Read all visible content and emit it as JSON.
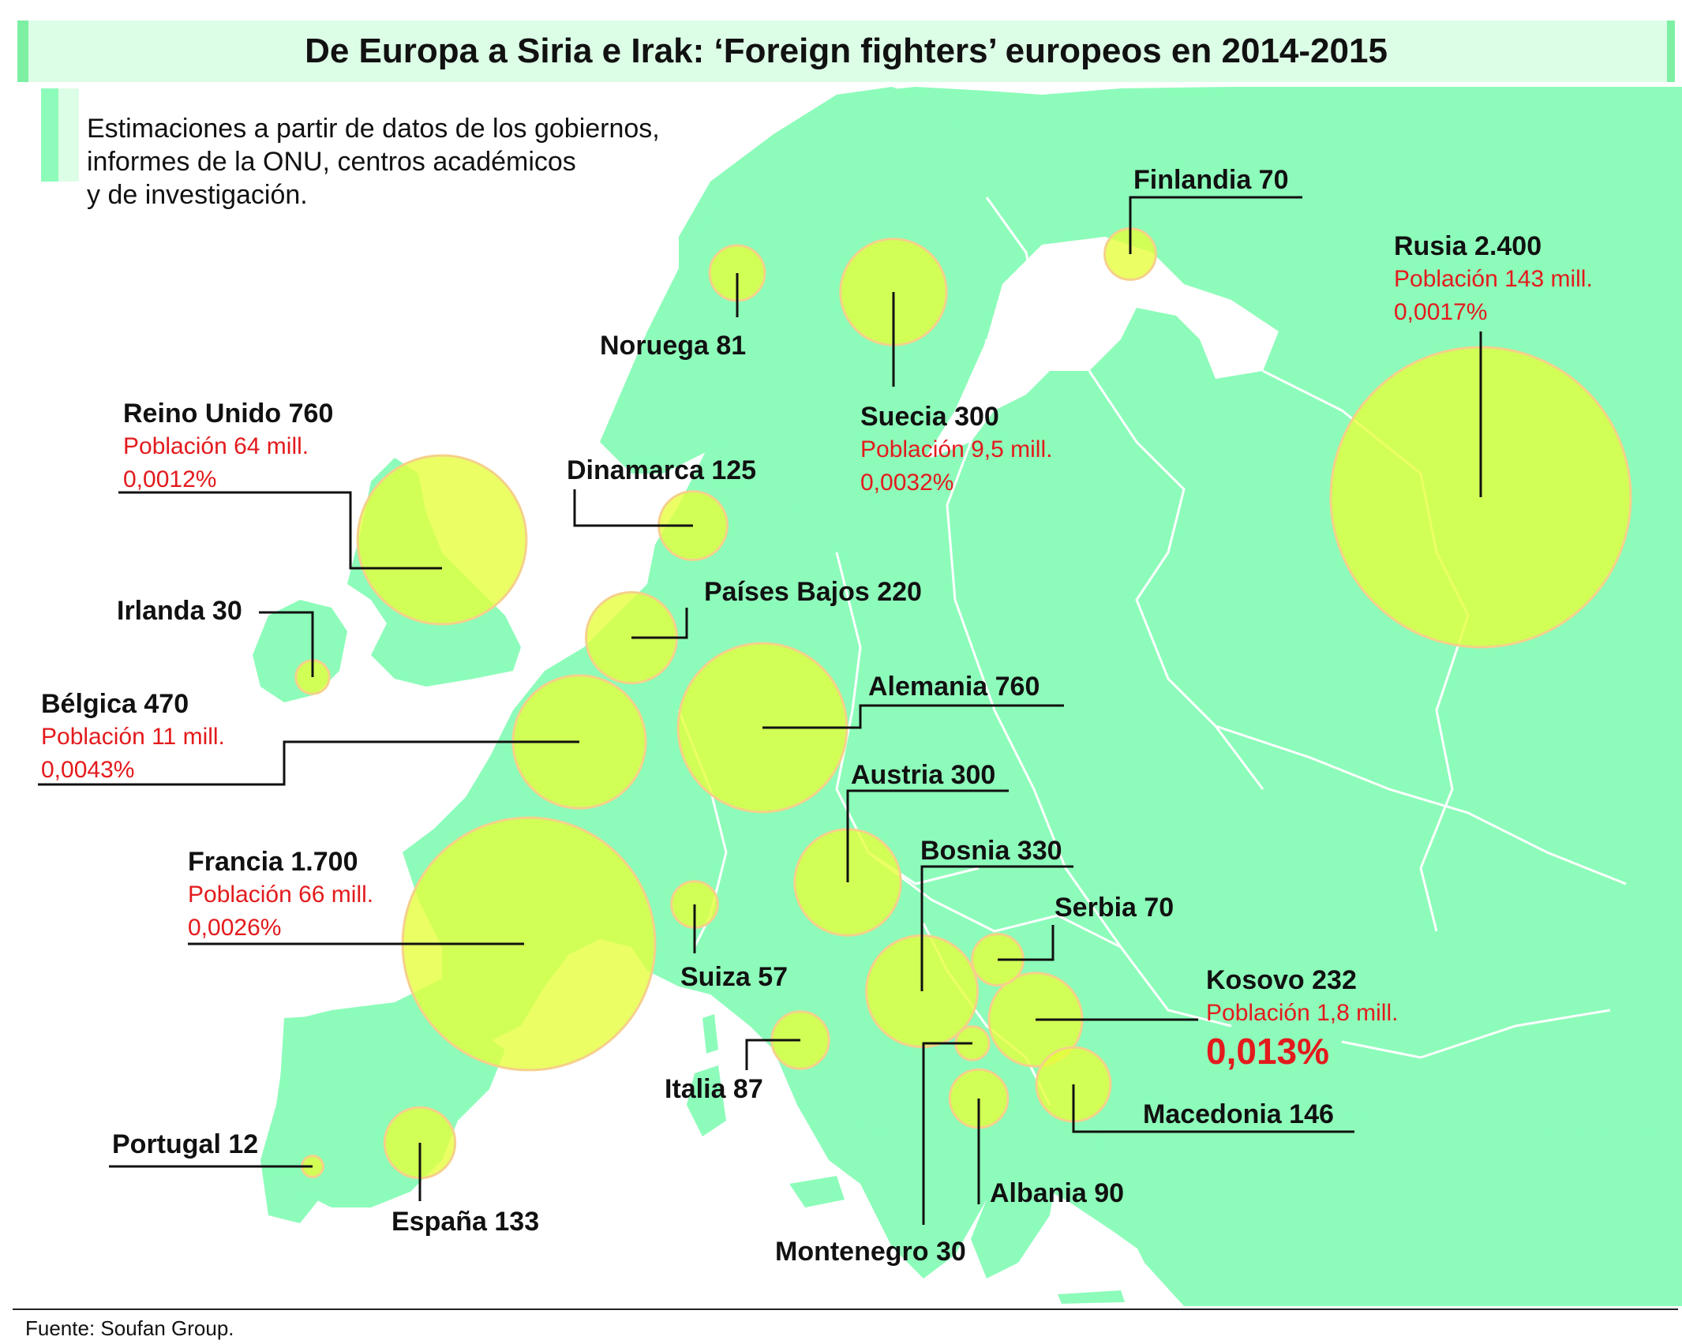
{
  "title": "De Europa a Siria e Irak: ‘Foreign fighters’ europeos en 2014-2015",
  "subtitle_lines": [
    "Estimaciones a partir de datos de los gobiernos,",
    "informes de la ONU, centros académicos",
    "y de investigación."
  ],
  "source": "Fuente: Soufan Group.",
  "colors": {
    "land": "#8dfcba",
    "sea": "#ffffff",
    "bubble_fill": "#e6ff3a",
    "bubble_stroke": "#f5d08a",
    "highlight": "#e31a1c"
  },
  "countries": [
    {
      "name": "Rusia",
      "fighters": "2.400",
      "label": "Rusia 2.400",
      "population": "Población 143 mill.",
      "percent": "0,0017%"
    },
    {
      "name": "Francia",
      "fighters": "1.700",
      "label": "Francia 1.700",
      "population": "Población 66 mill.",
      "percent": "0,0026%"
    },
    {
      "name": "Reino Unido",
      "fighters": "760",
      "label": "Reino Unido 760",
      "population": "Población 64 mill.",
      "percent": "0,0012%"
    },
    {
      "name": "Alemania",
      "fighters": "760",
      "label": "Alemania 760"
    },
    {
      "name": "Bélgica",
      "fighters": "470",
      "label": "Bélgica 470",
      "population": "Población 11 mill.",
      "percent": "0,0043%"
    },
    {
      "name": "Bosnia",
      "fighters": "330",
      "label": "Bosnia 330"
    },
    {
      "name": "Suecia",
      "fighters": "300",
      "label": "Suecia 300",
      "population": "Población 9,5 mill.",
      "percent": "0,0032%"
    },
    {
      "name": "Austria",
      "fighters": "300",
      "label": "Austria 300"
    },
    {
      "name": "Kosovo",
      "fighters": "232",
      "label": "Kosovo 232",
      "population": "Población 1,8 mill.",
      "percent": "0,013%"
    },
    {
      "name": "Países Bajos",
      "fighters": "220",
      "label": "Países Bajos 220"
    },
    {
      "name": "Macedonia",
      "fighters": "146",
      "label": "Macedonia 146"
    },
    {
      "name": "España",
      "fighters": "133",
      "label": "España 133"
    },
    {
      "name": "Dinamarca",
      "fighters": "125",
      "label": "Dinamarca 125"
    },
    {
      "name": "Albania",
      "fighters": "90",
      "label": "Albania 90"
    },
    {
      "name": "Italia",
      "fighters": "87",
      "label": "Italia 87"
    },
    {
      "name": "Noruega",
      "fighters": "81",
      "label": "Noruega 81"
    },
    {
      "name": "Finlandia",
      "fighters": "70",
      "label": "Finlandia 70"
    },
    {
      "name": "Serbia",
      "fighters": "70",
      "label": "Serbia 70"
    },
    {
      "name": "Suiza",
      "fighters": "57",
      "label": "Suiza 57"
    },
    {
      "name": "Irlanda",
      "fighters": "30",
      "label": "Irlanda 30"
    },
    {
      "name": "Montenegro",
      "fighters": "30",
      "label": "Montenegro 30"
    },
    {
      "name": "Portugal",
      "fighters": "12",
      "label": "Portugal 12"
    }
  ]
}
